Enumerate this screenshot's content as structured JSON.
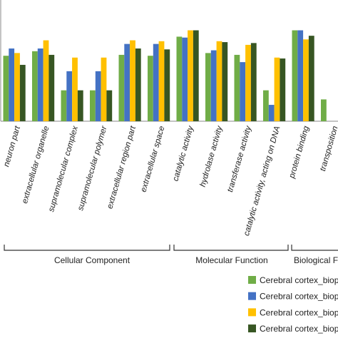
{
  "chart_data": {
    "type": "bar",
    "title": "",
    "xlabel": "",
    "ylabel": "",
    "ylim": [
      0,
      12
    ],
    "grid": false,
    "legend_position": "bottom-right",
    "categories": [
      "neuron part",
      "extracellular organelle",
      "supramolecular complex",
      "supramolecular polymer",
      "extracellular region part",
      "extracellular space",
      "catalytic activity",
      "hydrolase activity",
      "transferase activity",
      "catalytic activity, acting on DNA",
      "protein binding",
      "transposition"
    ],
    "series": [
      {
        "name": "Cerebral cortex_biop",
        "color": "#70ad47",
        "values": [
          7.2,
          7.7,
          3.4,
          3.4,
          7.3,
          7.2,
          9.3,
          7.5,
          7.3,
          3.4,
          10.0,
          2.4
        ]
      },
      {
        "name": "Cerebral cortex_biop",
        "color": "#4472c4",
        "values": [
          8.0,
          8.0,
          5.5,
          5.5,
          8.5,
          8.5,
          9.2,
          7.8,
          6.5,
          1.8,
          10.0,
          0.0
        ]
      },
      {
        "name": "Cerebral cortex_biop",
        "color": "#ffc000",
        "values": [
          7.5,
          8.9,
          7.0,
          7.0,
          8.9,
          8.8,
          10.0,
          8.8,
          8.4,
          7.0,
          9.0,
          0.0
        ]
      },
      {
        "name": "Cerebral cortex_biop",
        "color": "#375623",
        "values": [
          6.2,
          7.3,
          3.4,
          3.4,
          8.0,
          7.9,
          10.0,
          8.7,
          8.6,
          6.9,
          9.4,
          0.0
        ]
      }
    ],
    "groups": [
      {
        "label": "Cellular Component"
      },
      {
        "label": "Molecular Function"
      },
      {
        "label": "Biological F"
      }
    ]
  }
}
